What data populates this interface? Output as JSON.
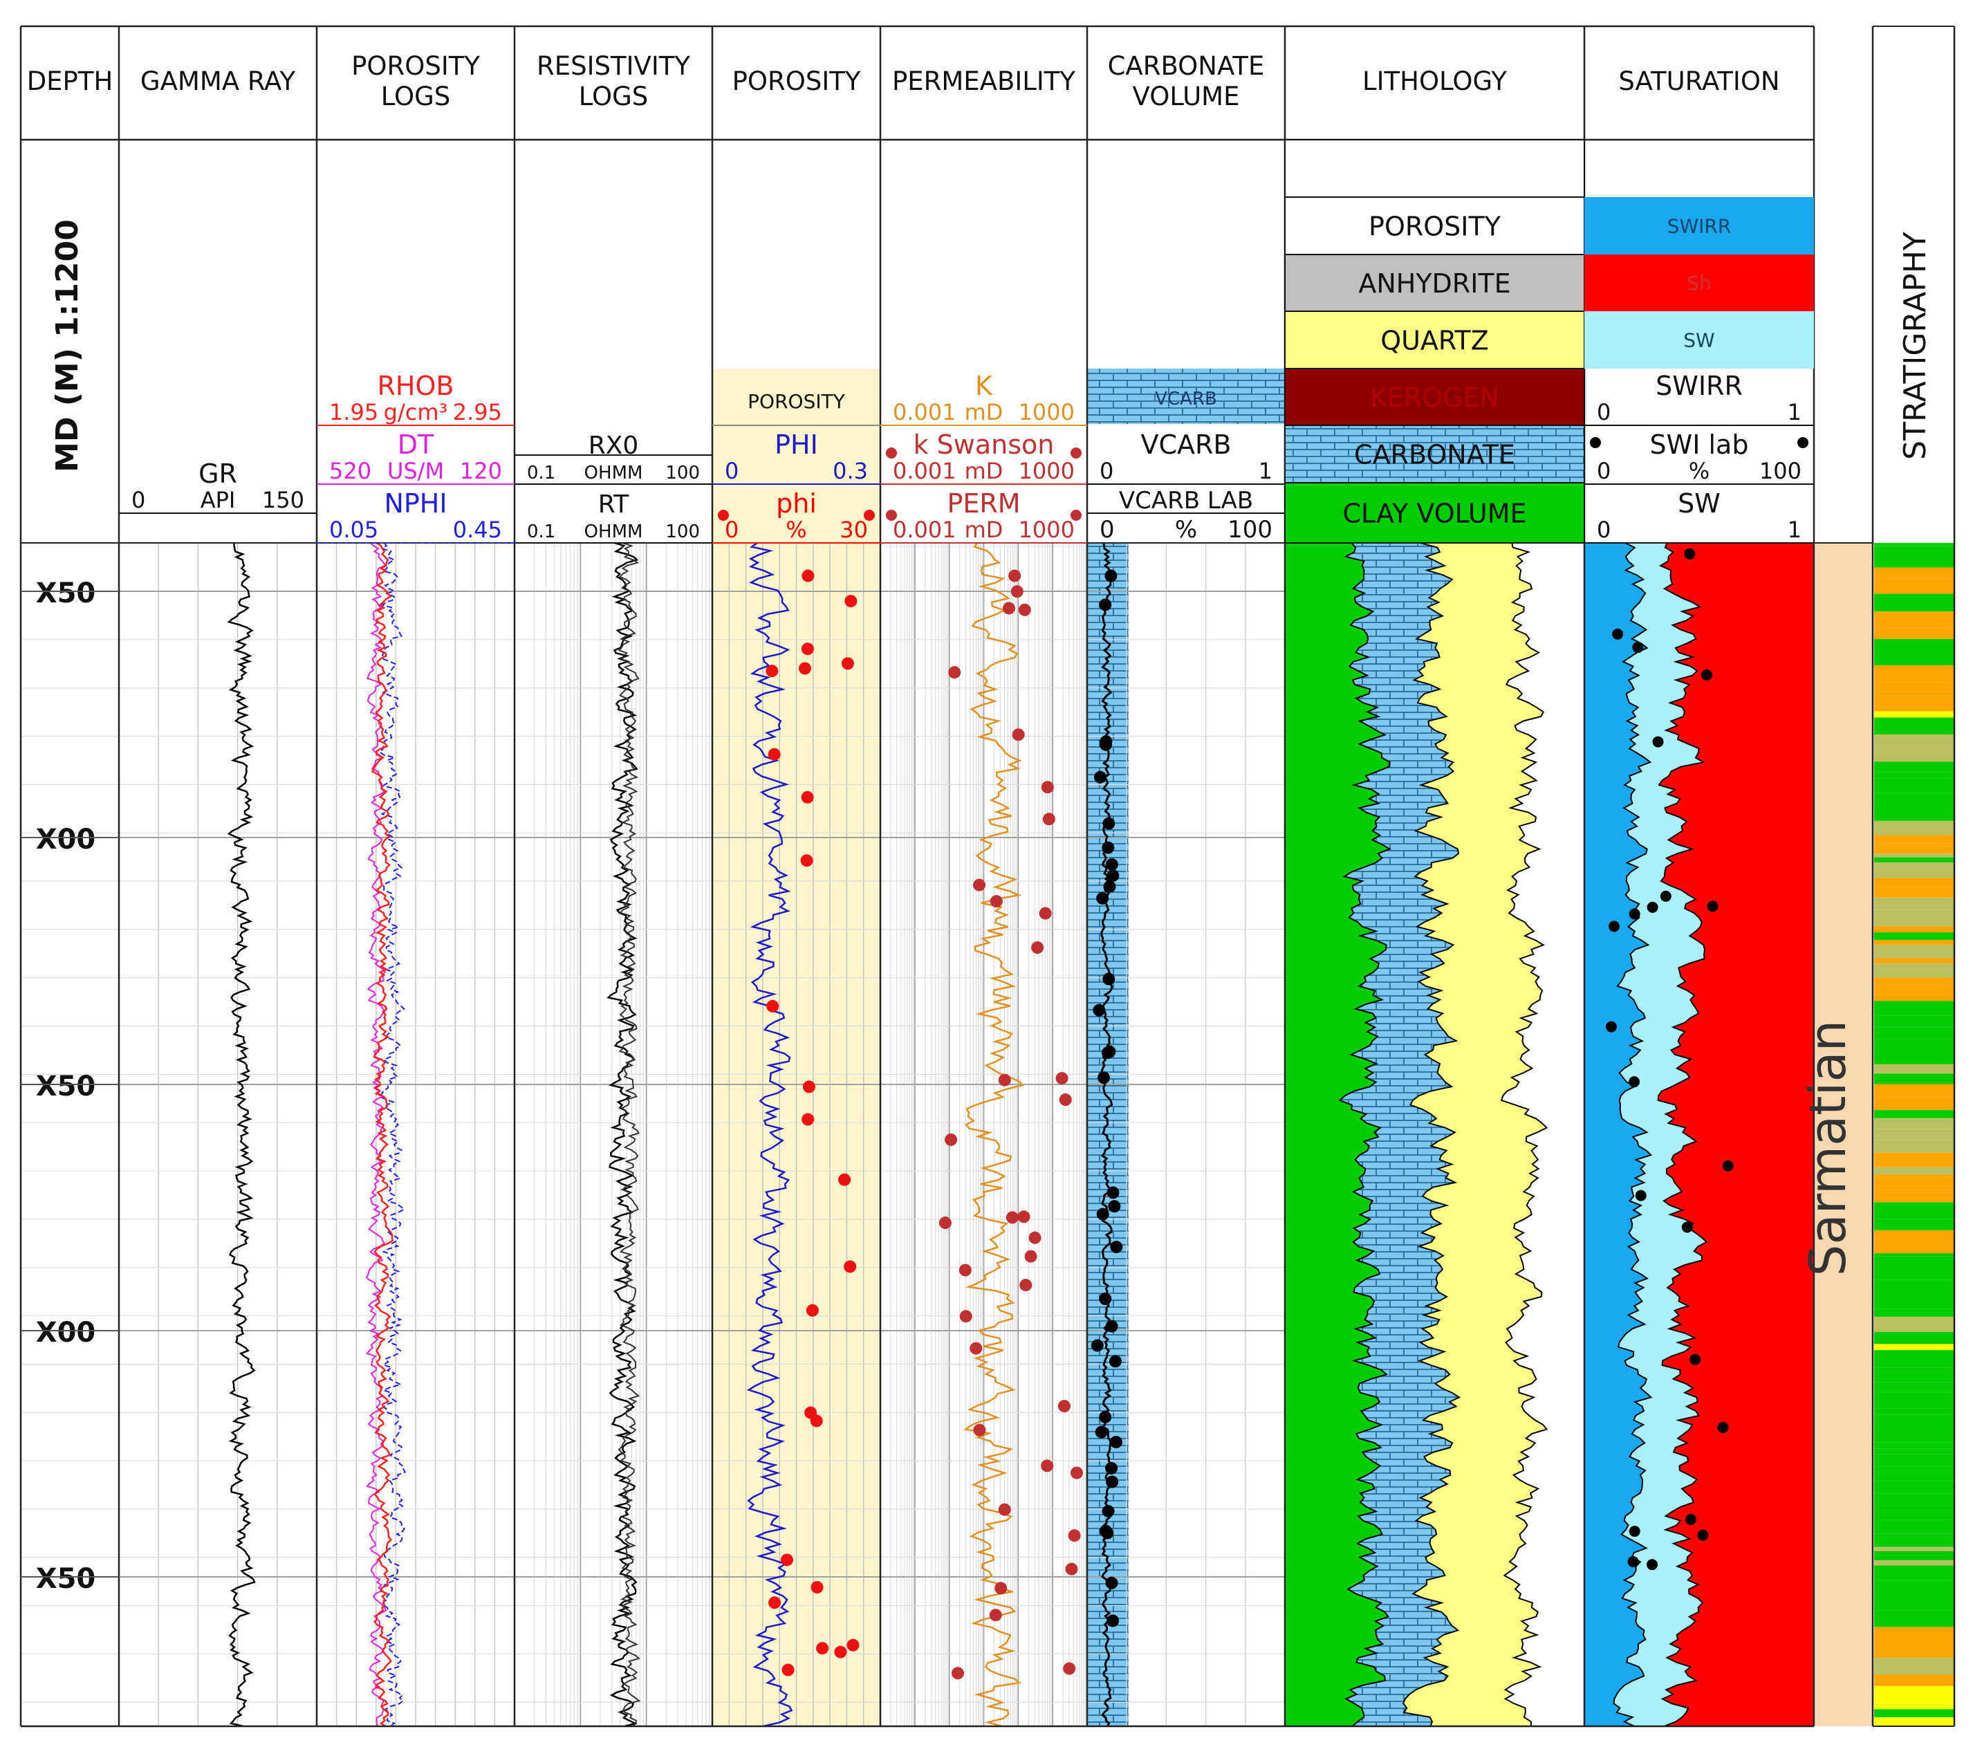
{
  "chart_data": {
    "type": "line",
    "track_titles": [
      [
        "DEPTH"
      ],
      [
        "GAMMA RAY"
      ],
      [
        "POROSITY",
        "LOGS"
      ],
      [
        "RESISTIVITY",
        "LOGS"
      ],
      [
        "POROSITY"
      ],
      [
        "PERMEABILITY"
      ],
      [
        "CARBONATE",
        "VOLUME"
      ],
      [
        "LITHOLOGY"
      ],
      [
        "SATURATION"
      ],
      [
        ""
      ],
      [
        ""
      ]
    ],
    "depth_axis_label": "MD (M) 1:1200",
    "depth_ticks": [
      "X50",
      "X00",
      "X50",
      "X00",
      "X50"
    ],
    "stratigraphy_label": "STRATIGRAPHY",
    "formation": "Sarmatian",
    "tracks": {
      "gamma_ray": {
        "curve": "GR",
        "unit": "API",
        "min": "0",
        "max": "150",
        "color": "#000000"
      },
      "porosity_logs": {
        "curves": [
          {
            "name": "RHOB",
            "unit": "g/cm³",
            "min": "1.95",
            "max": "2.95",
            "color": "#ff2020"
          },
          {
            "name": "DT",
            "unit": "US/M",
            "min": "520",
            "max": "120",
            "color": "#e020e0"
          },
          {
            "name": "NPHI",
            "unit": "",
            "min": "0.05",
            "max": "0.45",
            "color": "#2020e0"
          }
        ]
      },
      "resistivity_logs": {
        "curves": [
          {
            "name": "RX0",
            "unit": "OHMM",
            "min": "0.1",
            "max": "100",
            "color": "#000000"
          },
          {
            "name": "RT",
            "unit": "OHMM",
            "min": "0.1",
            "max": "100",
            "color": "#000000"
          }
        ]
      },
      "porosity": {
        "fill_label": "POROSITY",
        "curves": [
          {
            "name": "PHI",
            "unit": "",
            "min": "0",
            "max": "0.3",
            "color": "#1a1acc"
          },
          {
            "name": "phi",
            "unit": "%",
            "min": "0",
            "max": "30",
            "color": "#ff0000"
          }
        ]
      },
      "permeability": {
        "curves": [
          {
            "name": "K",
            "unit": "mD",
            "min": "0.001",
            "max": "1000",
            "color": "#e09020"
          },
          {
            "name": "k Swanson",
            "unit": "mD",
            "min": "0.001",
            "max": "1000",
            "color": "#c03030"
          },
          {
            "name": "PERM",
            "unit": "mD",
            "min": "0.001",
            "max": "1000",
            "color": "#c03030"
          }
        ]
      },
      "carbonate_volume": {
        "fill_label": "VCARB",
        "curves": [
          {
            "name": "VCARB",
            "unit": "",
            "min": "0",
            "max": "1"
          },
          {
            "name": "VCARB_LAB",
            "unit": "%",
            "min": "0",
            "max": "100"
          }
        ]
      },
      "lithology": {
        "legend": [
          {
            "label": "POROSITY",
            "color": "#ffffff"
          },
          {
            "label": "ANHYDRITE",
            "color": "#bfbfbf"
          },
          {
            "label": "QUARTZ",
            "color": "#ffff88"
          },
          {
            "label": "KEROGEN",
            "color": "#8b0000"
          },
          {
            "label": "CARBONATE",
            "color": "#7ec8ee"
          },
          {
            "label": "CLAY VOLUME",
            "color": "#00cc00"
          }
        ]
      },
      "saturation": {
        "legend": [
          {
            "label": "SWIRR",
            "color": "#1aa8f0"
          },
          {
            "label": "Sh",
            "color": "#ff0000"
          },
          {
            "label": "SW",
            "color": "#aaf0f8"
          }
        ],
        "curves": [
          {
            "name": "SWIRR",
            "unit": "",
            "min": "0",
            "max": "1"
          },
          {
            "name": "SWI lab",
            "unit": "%",
            "min": "0",
            "max": "100"
          },
          {
            "name": "SW",
            "unit": "",
            "min": "0",
            "max": "1"
          }
        ]
      }
    },
    "colors": {
      "clay": "#00cc00",
      "carbonate": "#7ec8ee",
      "quartz": "#ffff88",
      "swirr": "#1aa8f0",
      "sh": "#ff0000",
      "sw": "#aaf0f8",
      "porosity_fill": "#fff5cc",
      "formation_fill": "#f8d8b0"
    }
  }
}
